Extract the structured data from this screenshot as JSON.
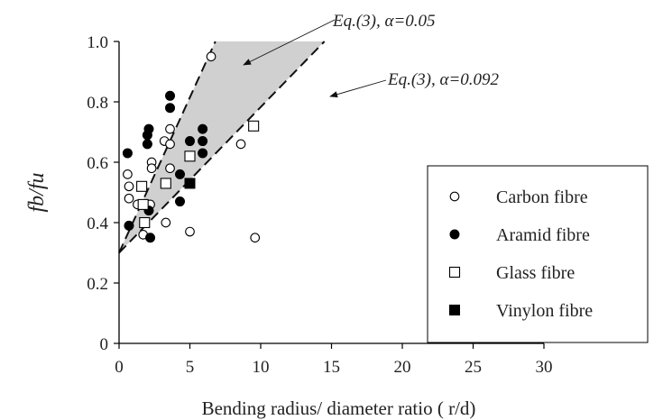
{
  "chart_data": {
    "type": "scatter",
    "xlabel": "Bending radius/ diameter ratio ( r/d)",
    "ylabel": "fb/fu",
    "xlim": [
      0,
      30
    ],
    "ylim": [
      0,
      1.0
    ],
    "x_ticks": [
      "0",
      "5",
      "10",
      "15",
      "20",
      "25",
      "30"
    ],
    "y_ticks": [
      "0",
      "0.2",
      "0.4",
      "0.6",
      "0.8",
      "1.0"
    ],
    "grid": false,
    "legend_position": "bottom-right",
    "series": [
      {
        "name": "Carbon fibre",
        "marker": "open-circle",
        "color": "#000000",
        "points": [
          [
            0.6,
            0.56
          ],
          [
            0.7,
            0.52
          ],
          [
            0.7,
            0.48
          ],
          [
            1.3,
            0.46
          ],
          [
            1.7,
            0.36
          ],
          [
            2.2,
            0.46
          ],
          [
            2.3,
            0.6
          ],
          [
            2.3,
            0.58
          ],
          [
            3.2,
            0.67
          ],
          [
            3.3,
            0.4
          ],
          [
            3.6,
            0.66
          ],
          [
            3.6,
            0.71
          ],
          [
            3.6,
            0.58
          ],
          [
            5.0,
            0.37
          ],
          [
            6.5,
            0.95
          ],
          [
            8.6,
            0.66
          ],
          [
            9.6,
            0.35
          ]
        ]
      },
      {
        "name": "Aramid fibre",
        "marker": "filled-circle",
        "color": "#000000",
        "points": [
          [
            0.6,
            0.63
          ],
          [
            0.7,
            0.39
          ],
          [
            2.0,
            0.69
          ],
          [
            2.0,
            0.66
          ],
          [
            2.1,
            0.71
          ],
          [
            2.1,
            0.44
          ],
          [
            2.2,
            0.35
          ],
          [
            3.6,
            0.82
          ],
          [
            3.6,
            0.78
          ],
          [
            4.3,
            0.56
          ],
          [
            4.3,
            0.47
          ],
          [
            5.0,
            0.67
          ],
          [
            5.9,
            0.71
          ],
          [
            5.9,
            0.67
          ],
          [
            5.9,
            0.63
          ]
        ]
      },
      {
        "name": "Glass fibre",
        "marker": "open-square",
        "color": "#000000",
        "points": [
          [
            1.6,
            0.52
          ],
          [
            1.7,
            0.46
          ],
          [
            1.8,
            0.4
          ],
          [
            3.3,
            0.53
          ],
          [
            5.0,
            0.62
          ],
          [
            9.5,
            0.72
          ]
        ]
      },
      {
        "name": "Vinylon fibre",
        "marker": "filled-square",
        "color": "#000000",
        "points": [
          [
            5.0,
            0.53
          ]
        ]
      }
    ],
    "lines": [
      {
        "label": "Eq.(3), α=0.05",
        "x": [
          0,
          6.8
        ],
        "y": [
          0.3,
          1.0
        ],
        "style": "dashed"
      },
      {
        "label": "Eq.(3), α=0.092",
        "x": [
          0,
          14.5
        ],
        "y": [
          0.3,
          1.0
        ],
        "style": "dashed"
      }
    ],
    "shaded_region_color": "#d0d0d0"
  }
}
